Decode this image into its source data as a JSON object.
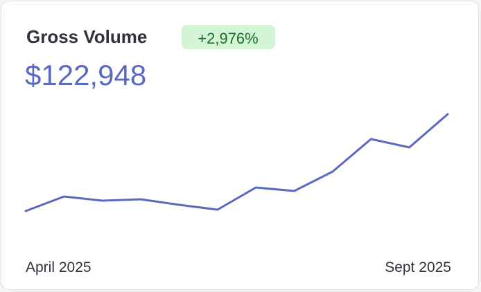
{
  "chart_data": {
    "type": "line",
    "title": "Gross Volume",
    "badge": "+2,976%",
    "total": "$122,948",
    "categories": [
      "April 2025",
      null,
      null,
      null,
      null,
      null,
      null,
      null,
      null,
      null,
      null,
      "Sept 2025"
    ],
    "values": [
      35,
      56,
      50,
      52,
      44,
      37,
      69,
      64,
      92,
      139,
      127,
      175
    ],
    "color": "#5b68c0"
  }
}
